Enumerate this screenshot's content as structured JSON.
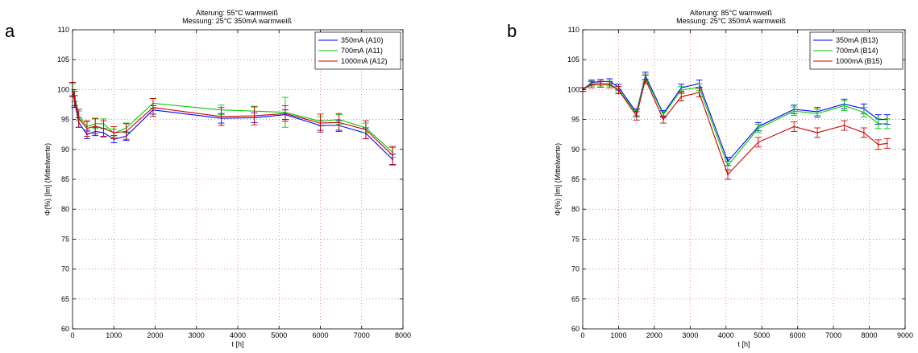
{
  "chart_data": [
    {
      "panel_letter": "a",
      "type": "line",
      "title": "Alterung: 55°C warmweiß",
      "subtitle": "Messung: 25°C 350mA warmweiß",
      "xlabel": "t [h]",
      "ylabel": "Φ(%) [lm] (Mittelwerte)",
      "xlim": [
        0,
        8000
      ],
      "ylim": [
        60,
        110
      ],
      "xticks": [
        0,
        1000,
        2000,
        3000,
        4000,
        5000,
        6000,
        7000,
        8000
      ],
      "yticks": [
        60,
        65,
        70,
        75,
        80,
        85,
        90,
        95,
        100,
        105,
        110
      ],
      "grid": "dotted",
      "legend_position": "top-right",
      "series": [
        {
          "name": "350mA (A10)",
          "color": "#0000ff",
          "x": [
            0,
            50,
            150,
            350,
            550,
            750,
            1000,
            1300,
            1950,
            3600,
            4400,
            5150,
            6000,
            6450,
            7100,
            7750
          ],
          "y": [
            100,
            98,
            94.5,
            92.5,
            93,
            92.8,
            91.7,
            92.2,
            96.6,
            95.2,
            95.3,
            95.8,
            94.0,
            94.0,
            92.7,
            88.3
          ],
          "err": [
            1.2,
            1.0,
            0.8,
            0.7,
            0.7,
            0.7,
            0.6,
            0.7,
            0.7,
            0.8,
            0.8,
            0.8,
            0.8,
            0.8,
            0.9,
            0.9
          ]
        },
        {
          "name": "700mA (A11)",
          "color": "#00cc00",
          "x": [
            0,
            50,
            150,
            350,
            550,
            750,
            1000,
            1300,
            1950,
            3600,
            4400,
            5150,
            6000,
            6450,
            7100,
            7750
          ],
          "y": [
            100,
            99,
            95.6,
            93.8,
            94.3,
            94.3,
            92.7,
            93.6,
            97.7,
            96.6,
            96.4,
            96.2,
            94.7,
            95.0,
            93.6,
            89.5
          ],
          "err": [
            1.0,
            1.0,
            0.8,
            0.8,
            0.8,
            0.8,
            0.7,
            0.8,
            0.8,
            0.8,
            0.8,
            2.5,
            0.8,
            0.8,
            0.8,
            0.8
          ]
        },
        {
          "name": "1000mA (A12)",
          "color": "#cc0000",
          "x": [
            0,
            50,
            150,
            350,
            550,
            750,
            1000,
            1300,
            1950,
            3600,
            4400,
            5150,
            6000,
            6450,
            7100,
            7750
          ],
          "y": [
            100,
            98.5,
            95.2,
            93.5,
            93.9,
            93.5,
            92.8,
            93.0,
            97.0,
            95.5,
            95.6,
            96.0,
            94.4,
            94.5,
            93.3,
            89.0
          ],
          "err": [
            1.2,
            1.2,
            1.5,
            1.3,
            1.3,
            1.3,
            1.0,
            1.3,
            1.5,
            1.5,
            1.5,
            1.3,
            1.5,
            1.5,
            1.5,
            1.5
          ]
        }
      ]
    },
    {
      "panel_letter": "b",
      "type": "line",
      "title": "Alterung: 85°C warmweiß",
      "subtitle": "Messung: 25°C 350mA warmweiß",
      "xlabel": "t [h]",
      "ylabel": "Φ(%) [lm] (Mittelwerte)",
      "xlim": [
        0,
        9000
      ],
      "ylim": [
        60,
        110
      ],
      "xticks": [
        0,
        1000,
        2000,
        3000,
        4000,
        5000,
        6000,
        7000,
        8000,
        9000
      ],
      "yticks": [
        60,
        65,
        70,
        75,
        80,
        85,
        90,
        95,
        100,
        105,
        110
      ],
      "grid": "dotted",
      "legend_position": "top-right",
      "series": [
        {
          "name": "350mA (B13)",
          "color": "#0000ff",
          "x": [
            0,
            250,
            500,
            750,
            1000,
            1500,
            1750,
            2250,
            2750,
            3250,
            4050,
            4900,
            5900,
            6550,
            7300,
            7850,
            8250,
            8500
          ],
          "y": [
            100,
            101.2,
            101.3,
            101.4,
            100.4,
            96.2,
            102.3,
            96.0,
            100.3,
            101.0,
            88.0,
            93.8,
            96.7,
            96.3,
            97.6,
            96.8,
            95.0,
            95.0
          ],
          "err": [
            0.3,
            0.4,
            0.4,
            0.4,
            0.5,
            0.6,
            0.6,
            0.5,
            0.6,
            0.6,
            0.7,
            0.7,
            0.7,
            0.7,
            0.8,
            0.8,
            0.8,
            0.8
          ]
        },
        {
          "name": "700mA (B14)",
          "color": "#00cc00",
          "x": [
            0,
            250,
            500,
            750,
            1000,
            1500,
            1750,
            2250,
            2750,
            3250,
            4050,
            4900,
            5900,
            6550,
            7300,
            7850,
            8250,
            8500
          ],
          "y": [
            100,
            101.0,
            101.0,
            101.0,
            100.0,
            96.0,
            102.0,
            95.8,
            99.9,
            100.4,
            87.3,
            93.5,
            96.4,
            96.0,
            97.3,
            96.2,
            94.3,
            94.3
          ],
          "err": [
            0.3,
            0.4,
            0.4,
            0.4,
            0.5,
            0.6,
            0.6,
            0.5,
            0.6,
            0.6,
            0.7,
            0.7,
            0.7,
            0.7,
            0.8,
            0.8,
            0.8,
            0.8
          ]
        },
        {
          "name": "1000mA (B15)",
          "color": "#cc0000",
          "x": [
            0,
            250,
            500,
            750,
            1000,
            1500,
            1750,
            2250,
            2750,
            3250,
            4050,
            4900,
            5900,
            6550,
            7300,
            7850,
            8250,
            8500
          ],
          "y": [
            100,
            100.8,
            100.9,
            100.8,
            99.9,
            95.6,
            101.7,
            95.0,
            98.8,
            99.5,
            85.8,
            91.2,
            93.8,
            92.8,
            94.0,
            92.8,
            90.8,
            91.0
          ],
          "err": [
            0.3,
            0.5,
            0.5,
            0.5,
            0.6,
            0.7,
            0.7,
            0.6,
            0.7,
            0.7,
            0.8,
            0.8,
            0.8,
            0.8,
            0.8,
            0.8,
            0.8,
            0.8
          ]
        }
      ]
    }
  ]
}
